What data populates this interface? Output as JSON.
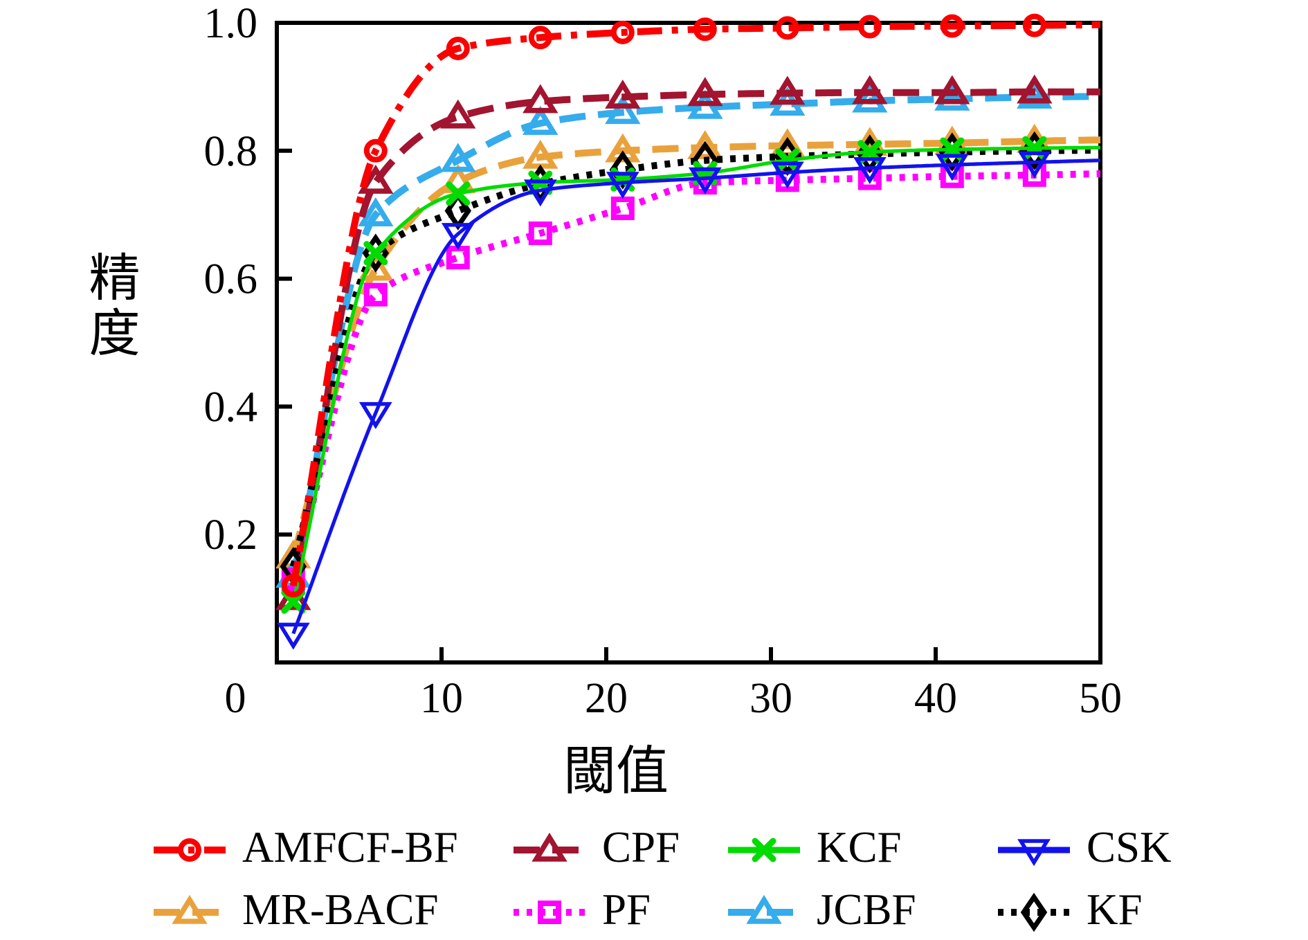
{
  "figure_title": "",
  "chart_data": {
    "type": "line",
    "title": "",
    "xlabel": "閾值",
    "ylabel": "精度",
    "xlim": [
      0,
      50
    ],
    "ylim": [
      0,
      1.0
    ],
    "grid": false,
    "xticks": {
      "values": [
        0,
        10,
        20,
        30,
        40,
        50
      ],
      "labels": [
        "0",
        "10",
        "20",
        "30",
        "40",
        "50"
      ]
    },
    "yticks": {
      "values": [
        0.2,
        0.4,
        0.6,
        0.8,
        1.0
      ],
      "labels": [
        "0.2",
        "0.4",
        "0.6",
        "0.8",
        "1.0"
      ]
    },
    "x": [
      1,
      6,
      11,
      16,
      21,
      26,
      31,
      36,
      41,
      46,
      50
    ],
    "marker_point_count": 10,
    "series": [
      {
        "name": "MR-BACF",
        "color": "#E9A23B",
        "line": "dashed",
        "marker": "triangle-up",
        "values": [
          0.165,
          0.615,
          0.752,
          0.79,
          0.8,
          0.805,
          0.808,
          0.81,
          0.812,
          0.815,
          0.817
        ]
      },
      {
        "name": "JCBF",
        "color": "#35ACEC",
        "line": "dashed",
        "marker": "triangle-up",
        "values": [
          0.135,
          0.7,
          0.785,
          0.843,
          0.86,
          0.868,
          0.873,
          0.878,
          0.881,
          0.884,
          0.885
        ]
      },
      {
        "name": "CPF",
        "color": "#A2142F",
        "line": "dashed",
        "marker": "triangle-up",
        "values": [
          0.1,
          0.751,
          0.853,
          0.877,
          0.884,
          0.888,
          0.89,
          0.891,
          0.891,
          0.892,
          0.892
        ]
      },
      {
        "name": "PF",
        "color": "#FF00FF",
        "line": "dotted",
        "marker": "square",
        "values": [
          0.13,
          0.575,
          0.633,
          0.671,
          0.71,
          0.75,
          0.754,
          0.757,
          0.76,
          0.762,
          0.764
        ]
      },
      {
        "name": "KF",
        "color": "#000000",
        "line": "dotted",
        "marker": "diamond",
        "values": [
          0.15,
          0.64,
          0.706,
          0.748,
          0.77,
          0.785,
          0.791,
          0.795,
          0.798,
          0.8,
          0.801
        ]
      },
      {
        "name": "KCF",
        "color": "#00DB00",
        "line": "solid",
        "marker": "x",
        "values": [
          0.095,
          0.64,
          0.733,
          0.75,
          0.755,
          0.765,
          0.785,
          0.798,
          0.802,
          0.804,
          0.805
        ]
      },
      {
        "name": "CSK",
        "color": "#1212EE",
        "line": "solid",
        "marker": "triangle-down",
        "values": [
          0.045,
          0.39,
          0.67,
          0.738,
          0.75,
          0.757,
          0.766,
          0.773,
          0.778,
          0.782,
          0.785
        ]
      },
      {
        "name": "AMFCF-BF",
        "color": "#FA0000",
        "line": "dashdot",
        "marker": "circle",
        "values": [
          0.12,
          0.8,
          0.96,
          0.977,
          0.985,
          0.99,
          0.992,
          0.994,
          0.995,
          0.996,
          0.997
        ]
      }
    ],
    "legend": {
      "position": "bottom",
      "rows": [
        [
          "AMFCF-BF",
          "CPF",
          "KCF",
          "CSK"
        ],
        [
          "MR-BACF",
          "PF",
          "JCBF",
          "KF"
        ]
      ]
    }
  }
}
